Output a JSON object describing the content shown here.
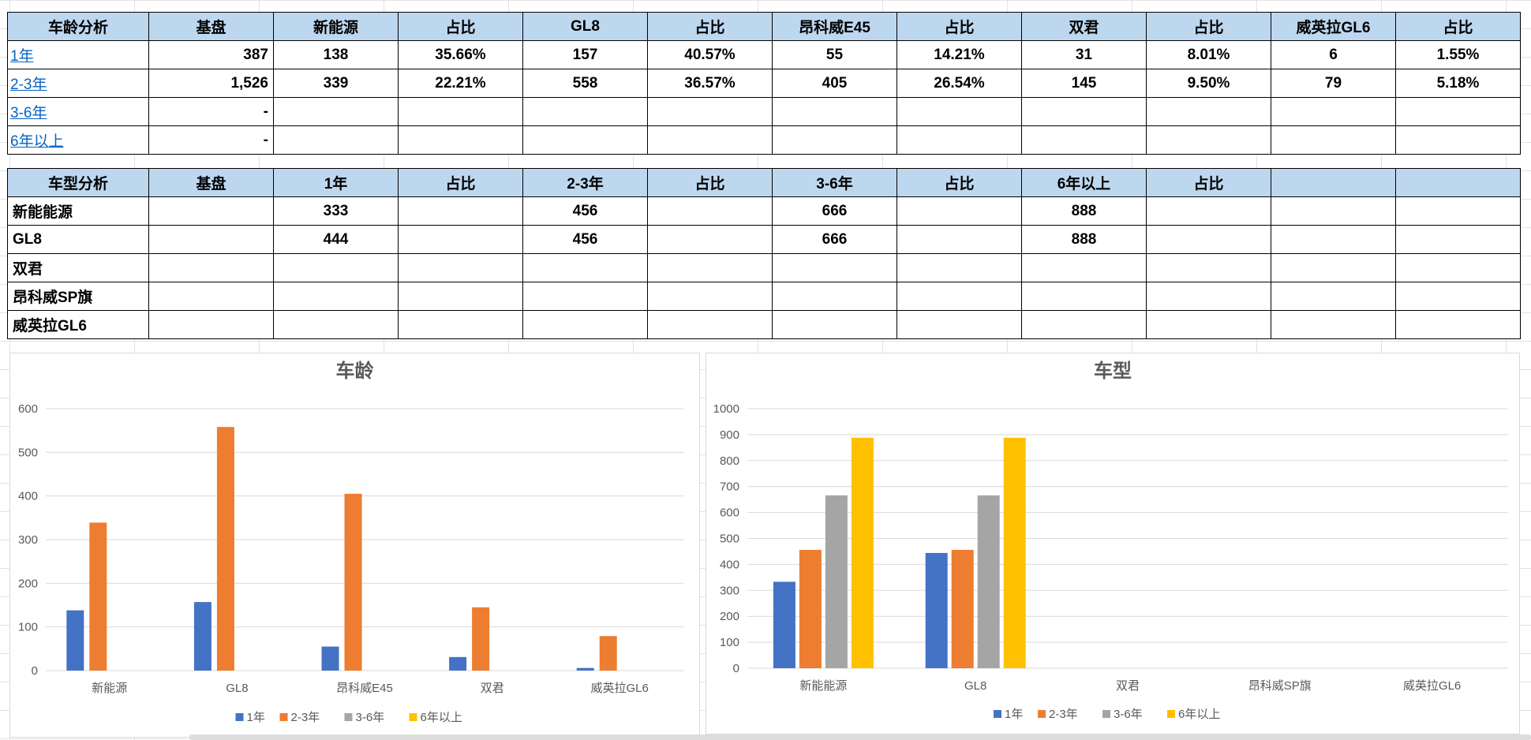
{
  "table_age": {
    "header": [
      "车龄分析",
      "基盘",
      "新能源",
      "占比",
      "GL8",
      "占比",
      "昂科威E45",
      "占比",
      "双君",
      "占比",
      "威英拉GL6",
      "占比"
    ],
    "rows": [
      {
        "label": "1年",
        "cells": [
          "387",
          "138",
          "35.66%",
          "157",
          "40.57%",
          "55",
          "14.21%",
          "31",
          "8.01%",
          "6",
          "1.55%"
        ]
      },
      {
        "label": "2-3年",
        "cells": [
          "1,526",
          "339",
          "22.21%",
          "558",
          "36.57%",
          "405",
          "26.54%",
          "145",
          "9.50%",
          "79",
          "5.18%"
        ]
      },
      {
        "label": "3-6年",
        "cells": [
          "-",
          "",
          "",
          "",
          "",
          "",
          "",
          "",
          "",
          "",
          ""
        ]
      },
      {
        "label": "6年以上",
        "cells": [
          "-",
          "",
          "",
          "",
          "",
          "",
          "",
          "",
          "",
          "",
          ""
        ]
      }
    ]
  },
  "table_model": {
    "header": [
      "车型分析",
      "基盘",
      "1年",
      "占比",
      "2-3年",
      "占比",
      "3-6年",
      "占比",
      "6年以上",
      "占比",
      "",
      ""
    ],
    "rows": [
      {
        "label": "新能能源",
        "cells": [
          "",
          "333",
          "",
          "456",
          "",
          "666",
          "",
          "888",
          "",
          "",
          ""
        ]
      },
      {
        "label": "GL8",
        "cells": [
          "",
          "444",
          "",
          "456",
          "",
          "666",
          "",
          "888",
          "",
          "",
          ""
        ]
      },
      {
        "label": "双君",
        "cells": [
          "",
          "",
          "",
          "",
          "",
          "",
          "",
          "",
          "",
          "",
          ""
        ]
      },
      {
        "label": "昂科威SP旗",
        "cells": [
          "",
          "",
          "",
          "",
          "",
          "",
          "",
          "",
          "",
          "",
          ""
        ]
      },
      {
        "label": "威英拉GL6",
        "cells": [
          "",
          "",
          "",
          "",
          "",
          "",
          "",
          "",
          "",
          "",
          ""
        ]
      }
    ]
  },
  "colors": {
    "series": [
      "#4472c4",
      "#ed7d31",
      "#a5a5a5",
      "#ffc000"
    ],
    "header_bg": "#bdd7ee",
    "link": "#0563c1"
  },
  "chart_data": [
    {
      "type": "bar",
      "title": "车龄",
      "categories": [
        "新能源",
        "GL8",
        "昂科威E45",
        "双君",
        "威英拉GL6"
      ],
      "series": [
        {
          "name": "1年",
          "values": [
            138,
            157,
            55,
            31,
            6
          ]
        },
        {
          "name": "2-3年",
          "values": [
            339,
            558,
            405,
            145,
            79
          ]
        },
        {
          "name": "3-6年",
          "values": [
            0,
            0,
            0,
            0,
            0
          ]
        },
        {
          "name": "6年以上",
          "values": [
            0,
            0,
            0,
            0,
            0
          ]
        }
      ],
      "yticks": [
        "0",
        "100",
        "200",
        "300",
        "400",
        "500",
        "600"
      ],
      "ylim": [
        0,
        600
      ],
      "legend": "bottom",
      "grid": true
    },
    {
      "type": "bar",
      "title": "车型",
      "categories": [
        "新能能源",
        "GL8",
        "双君",
        "昂科威SP旗",
        "威英拉GL6"
      ],
      "series": [
        {
          "name": "1年",
          "values": [
            333,
            444,
            0,
            0,
            0
          ]
        },
        {
          "name": "2-3年",
          "values": [
            456,
            456,
            0,
            0,
            0
          ]
        },
        {
          "name": "3-6年",
          "values": [
            666,
            666,
            0,
            0,
            0
          ]
        },
        {
          "name": "6年以上",
          "values": [
            888,
            888,
            0,
            0,
            0
          ]
        }
      ],
      "yticks": [
        "0",
        "100",
        "200",
        "300",
        "400",
        "500",
        "600",
        "700",
        "800",
        "900",
        "1000"
      ],
      "ylim": [
        0,
        1000
      ],
      "legend": "bottom",
      "grid": true
    }
  ]
}
